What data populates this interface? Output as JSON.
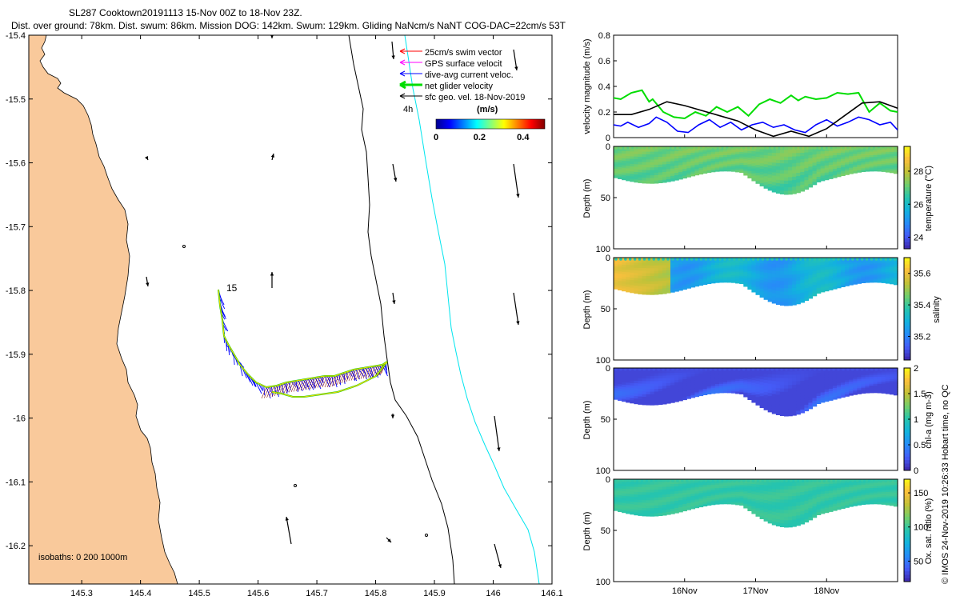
{
  "header": {
    "title_line1": "SL287 Cooktown20191113 15-Nov 00Z to 18-Nov 23Z.",
    "title_line2": "Dist. over ground: 78km. Dist. swum: 86km. Mission DOG: 142km. Swum: 129km. Gliding NaNcm/s NaNT COG-DAC=22cm/s 53T"
  },
  "map": {
    "lon_ticks": [
      "145.3",
      "145.4",
      "145.5",
      "145.6",
      "145.7",
      "145.8",
      "145.9",
      "146",
      "146.1"
    ],
    "lat_ticks": [
      "-15.4",
      "-15.5",
      "-15.6",
      "-15.7",
      "-15.8",
      "-15.9",
      "-16",
      "-16.1",
      "-16.2"
    ],
    "legend": [
      {
        "label": "25cm/s swim vector",
        "color": "#ff0000"
      },
      {
        "label": "GPS surface velocit",
        "color": "#ff00ff"
      },
      {
        "label": "dive-avg current veloc.",
        "color": "#0000ff"
      },
      {
        "label": "net glider velocity",
        "color": "#00dd00"
      },
      {
        "label": "sfc geo. vel. 18-Nov-2019",
        "color": "#000000"
      }
    ],
    "colorbar_title": "(m/s)",
    "colorbar_ticks": [
      "0",
      "0.2",
      "0.4"
    ],
    "time_label": "4h",
    "start_label": "15",
    "isobaths_label": "isobaths: 0   200  1000m",
    "colors": {
      "land": "#f9c99b",
      "isobath_200": "#000000",
      "isobath_1000": "#00e5ee"
    }
  },
  "chart_data": [
    {
      "type": "line",
      "title": "",
      "ylabel": "velocity magnitude (m/s)",
      "ylim": [
        0,
        0.8
      ],
      "yticks": [
        "0",
        "0.2",
        "0.4",
        "0.6",
        "0.8"
      ],
      "x_day_range": [
        15,
        19
      ],
      "series": [
        {
          "name": "net glider velocity",
          "color": "#00dd00",
          "x": [
            15.0,
            15.1,
            15.25,
            15.4,
            15.5,
            15.55,
            15.7,
            15.85,
            16.0,
            16.15,
            16.3,
            16.45,
            16.6,
            16.75,
            16.9,
            17.05,
            17.2,
            17.35,
            17.5,
            17.6,
            17.7,
            17.85,
            18.0,
            18.15,
            18.3,
            18.45,
            18.6,
            18.75,
            18.9,
            19.0
          ],
          "y": [
            0.31,
            0.3,
            0.35,
            0.37,
            0.28,
            0.3,
            0.2,
            0.16,
            0.15,
            0.2,
            0.17,
            0.24,
            0.2,
            0.24,
            0.17,
            0.26,
            0.3,
            0.27,
            0.33,
            0.29,
            0.32,
            0.3,
            0.31,
            0.35,
            0.34,
            0.35,
            0.2,
            0.27,
            0.21,
            0.2
          ]
        },
        {
          "name": "dive-avg current",
          "color": "#0000ff",
          "x": [
            15.0,
            15.1,
            15.2,
            15.35,
            15.5,
            15.6,
            15.75,
            15.9,
            16.05,
            16.2,
            16.35,
            16.5,
            16.65,
            16.8,
            16.95,
            17.1,
            17.25,
            17.4,
            17.55,
            17.7,
            17.85,
            18.0,
            18.15,
            18.3,
            18.45,
            18.6,
            18.75,
            18.9,
            19.0
          ],
          "y": [
            0.1,
            0.09,
            0.12,
            0.08,
            0.11,
            0.16,
            0.12,
            0.05,
            0.04,
            0.1,
            0.14,
            0.08,
            0.12,
            0.06,
            0.1,
            0.12,
            0.08,
            0.1,
            0.06,
            0.04,
            0.1,
            0.14,
            0.09,
            0.12,
            0.16,
            0.14,
            0.1,
            0.12,
            0.06
          ]
        },
        {
          "name": "sfc geo. vel.",
          "color": "#000000",
          "x": [
            15.0,
            15.25,
            15.5,
            15.75,
            16.0,
            16.25,
            16.5,
            16.75,
            17.0,
            17.25,
            17.5,
            17.75,
            18.0,
            18.25,
            18.5,
            18.75,
            19.0
          ],
          "y": [
            0.18,
            0.18,
            0.22,
            0.28,
            0.25,
            0.21,
            0.17,
            0.13,
            0.06,
            0.01,
            0.05,
            0.01,
            0.07,
            0.17,
            0.27,
            0.28,
            0.23
          ]
        }
      ]
    },
    {
      "type": "heatmap",
      "ylabel": "Depth (m)",
      "colorbar_label": "temperature (°C)",
      "ylim": [
        0,
        100
      ],
      "yticks": [
        "0",
        "50",
        "100"
      ],
      "cbar_ticks": [
        "24",
        "26",
        "28"
      ],
      "cbar_range": [
        23.3,
        29.5
      ],
      "base_value": 27.2,
      "colormap": "parula"
    },
    {
      "type": "heatmap",
      "ylabel": "Depth (m)",
      "colorbar_label": "salinity",
      "ylim": [
        0,
        100
      ],
      "yticks": [
        "0",
        "50",
        "100"
      ],
      "cbar_ticks": [
        "35.2",
        "35.4",
        "35.6"
      ],
      "cbar_range": [
        35.05,
        35.7
      ],
      "base_value": 35.38,
      "colormap": "parula"
    },
    {
      "type": "heatmap",
      "ylabel": "Depth (m)",
      "colorbar_label": "chl-a (mg m-3)",
      "ylim": [
        0,
        100
      ],
      "yticks": [
        "0",
        "50",
        "100"
      ],
      "cbar_ticks": [
        "0",
        "0.5",
        "1",
        "1.5",
        "2"
      ],
      "cbar_range": [
        0,
        2
      ],
      "base_value": 0.18,
      "colormap": "parula"
    },
    {
      "type": "heatmap",
      "ylabel": "Depth (m)",
      "colorbar_label": "Ox. sat. ratio (%)",
      "ylim": [
        0,
        100
      ],
      "yticks": [
        "0",
        "50",
        "100"
      ],
      "cbar_ticks": [
        "50",
        "100",
        "150"
      ],
      "cbar_range": [
        20,
        170
      ],
      "base_value": 98,
      "colormap": "parula"
    }
  ],
  "time_axis": {
    "ticks": [
      "16Nov",
      "17Nov",
      "18Nov"
    ]
  },
  "credit": "© IMOS 24-Nov-2019 10:26:33 Hobart time, no QC"
}
